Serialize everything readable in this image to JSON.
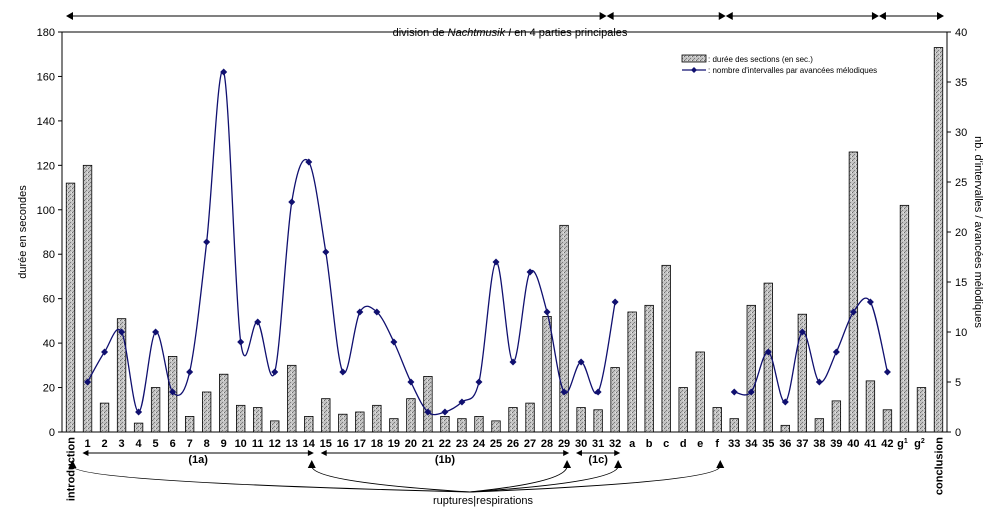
{
  "chart_data": {
    "type": "bar",
    "title_parts": [
      "division de ",
      "Nachtmusik I",
      " en 4 parties principales"
    ],
    "ylabel": "durée en secondes",
    "y2label": "nb. d'intervalles / avancées mélodiques",
    "ylim": [
      0,
      180
    ],
    "y2lim": [
      0,
      40
    ],
    "yticks": [
      "0",
      "20",
      "40",
      "60",
      "80",
      "100",
      "120",
      "140",
      "160",
      "180"
    ],
    "y2ticks": [
      "0",
      "5",
      "10",
      "15",
      "20",
      "25",
      "30",
      "35",
      "40"
    ],
    "legend": {
      "position": "top-right",
      "bar_label": ": durée des sections (en sec.)",
      "line_label": ": nombre d'intervalles par  avancées mélodiques"
    },
    "categories": [
      "introduction",
      "1",
      "2",
      "3",
      "4",
      "5",
      "6",
      "7",
      "8",
      "9",
      "10",
      "11",
      "12",
      "13",
      "14",
      "15",
      "16",
      "17",
      "18",
      "19",
      "20",
      "21",
      "22",
      "23",
      "24",
      "25",
      "26",
      "27",
      "28",
      "29",
      "30",
      "31",
      "32",
      "a",
      "b",
      "c",
      "d",
      "e",
      "f",
      "33",
      "34",
      "35",
      "36",
      "37",
      "38",
      "39",
      "40",
      "41",
      "42",
      "g1",
      "g2",
      "conclusion"
    ],
    "series": [
      {
        "name": "durée des sections (en sec.)",
        "type": "bar",
        "axis": "left",
        "color": "#b8b8b8",
        "values": [
          112,
          120,
          13,
          51,
          4,
          20,
          34,
          7,
          18,
          26,
          12,
          11,
          5,
          30,
          7,
          15,
          8,
          9,
          12,
          6,
          15,
          25,
          7,
          6,
          7,
          5,
          11,
          13,
          52,
          93,
          11,
          10,
          29,
          54,
          57,
          75,
          20,
          36,
          11,
          6,
          57,
          67,
          3,
          53,
          6,
          14,
          126,
          23,
          10,
          102,
          20,
          173
        ]
      },
      {
        "name": "nombre d'intervalles par  avancées mélodiques",
        "type": "line",
        "axis": "right",
        "color": "#101070",
        "values": [
          null,
          5,
          8,
          10,
          2,
          10,
          4,
          6,
          19,
          36,
          9,
          11,
          6,
          23,
          27,
          18,
          6,
          12,
          12,
          9,
          5,
          2,
          2,
          3,
          5,
          17,
          7,
          16,
          12,
          4,
          7,
          4,
          13,
          null,
          null,
          null,
          null,
          null,
          null,
          4,
          4,
          8,
          3,
          10,
          5,
          8,
          12,
          13,
          6,
          null,
          null,
          null
        ]
      }
    ],
    "divisions": [
      {
        "from": 0,
        "to": 32
      },
      {
        "from": 32,
        "to": 39
      },
      {
        "from": 39,
        "to": 48
      },
      {
        "from": 48,
        "to": 51
      }
    ],
    "subgroups": [
      {
        "label": "(1a)",
        "from": 1,
        "to": 14
      },
      {
        "label": "(1b)",
        "from": 15,
        "to": 29
      },
      {
        "label": "(1c)",
        "from": 30,
        "to": 32
      }
    ],
    "ruptures_label": "ruptures|respirations",
    "rupture_points": [
      0,
      14,
      29,
      32,
      38
    ]
  }
}
